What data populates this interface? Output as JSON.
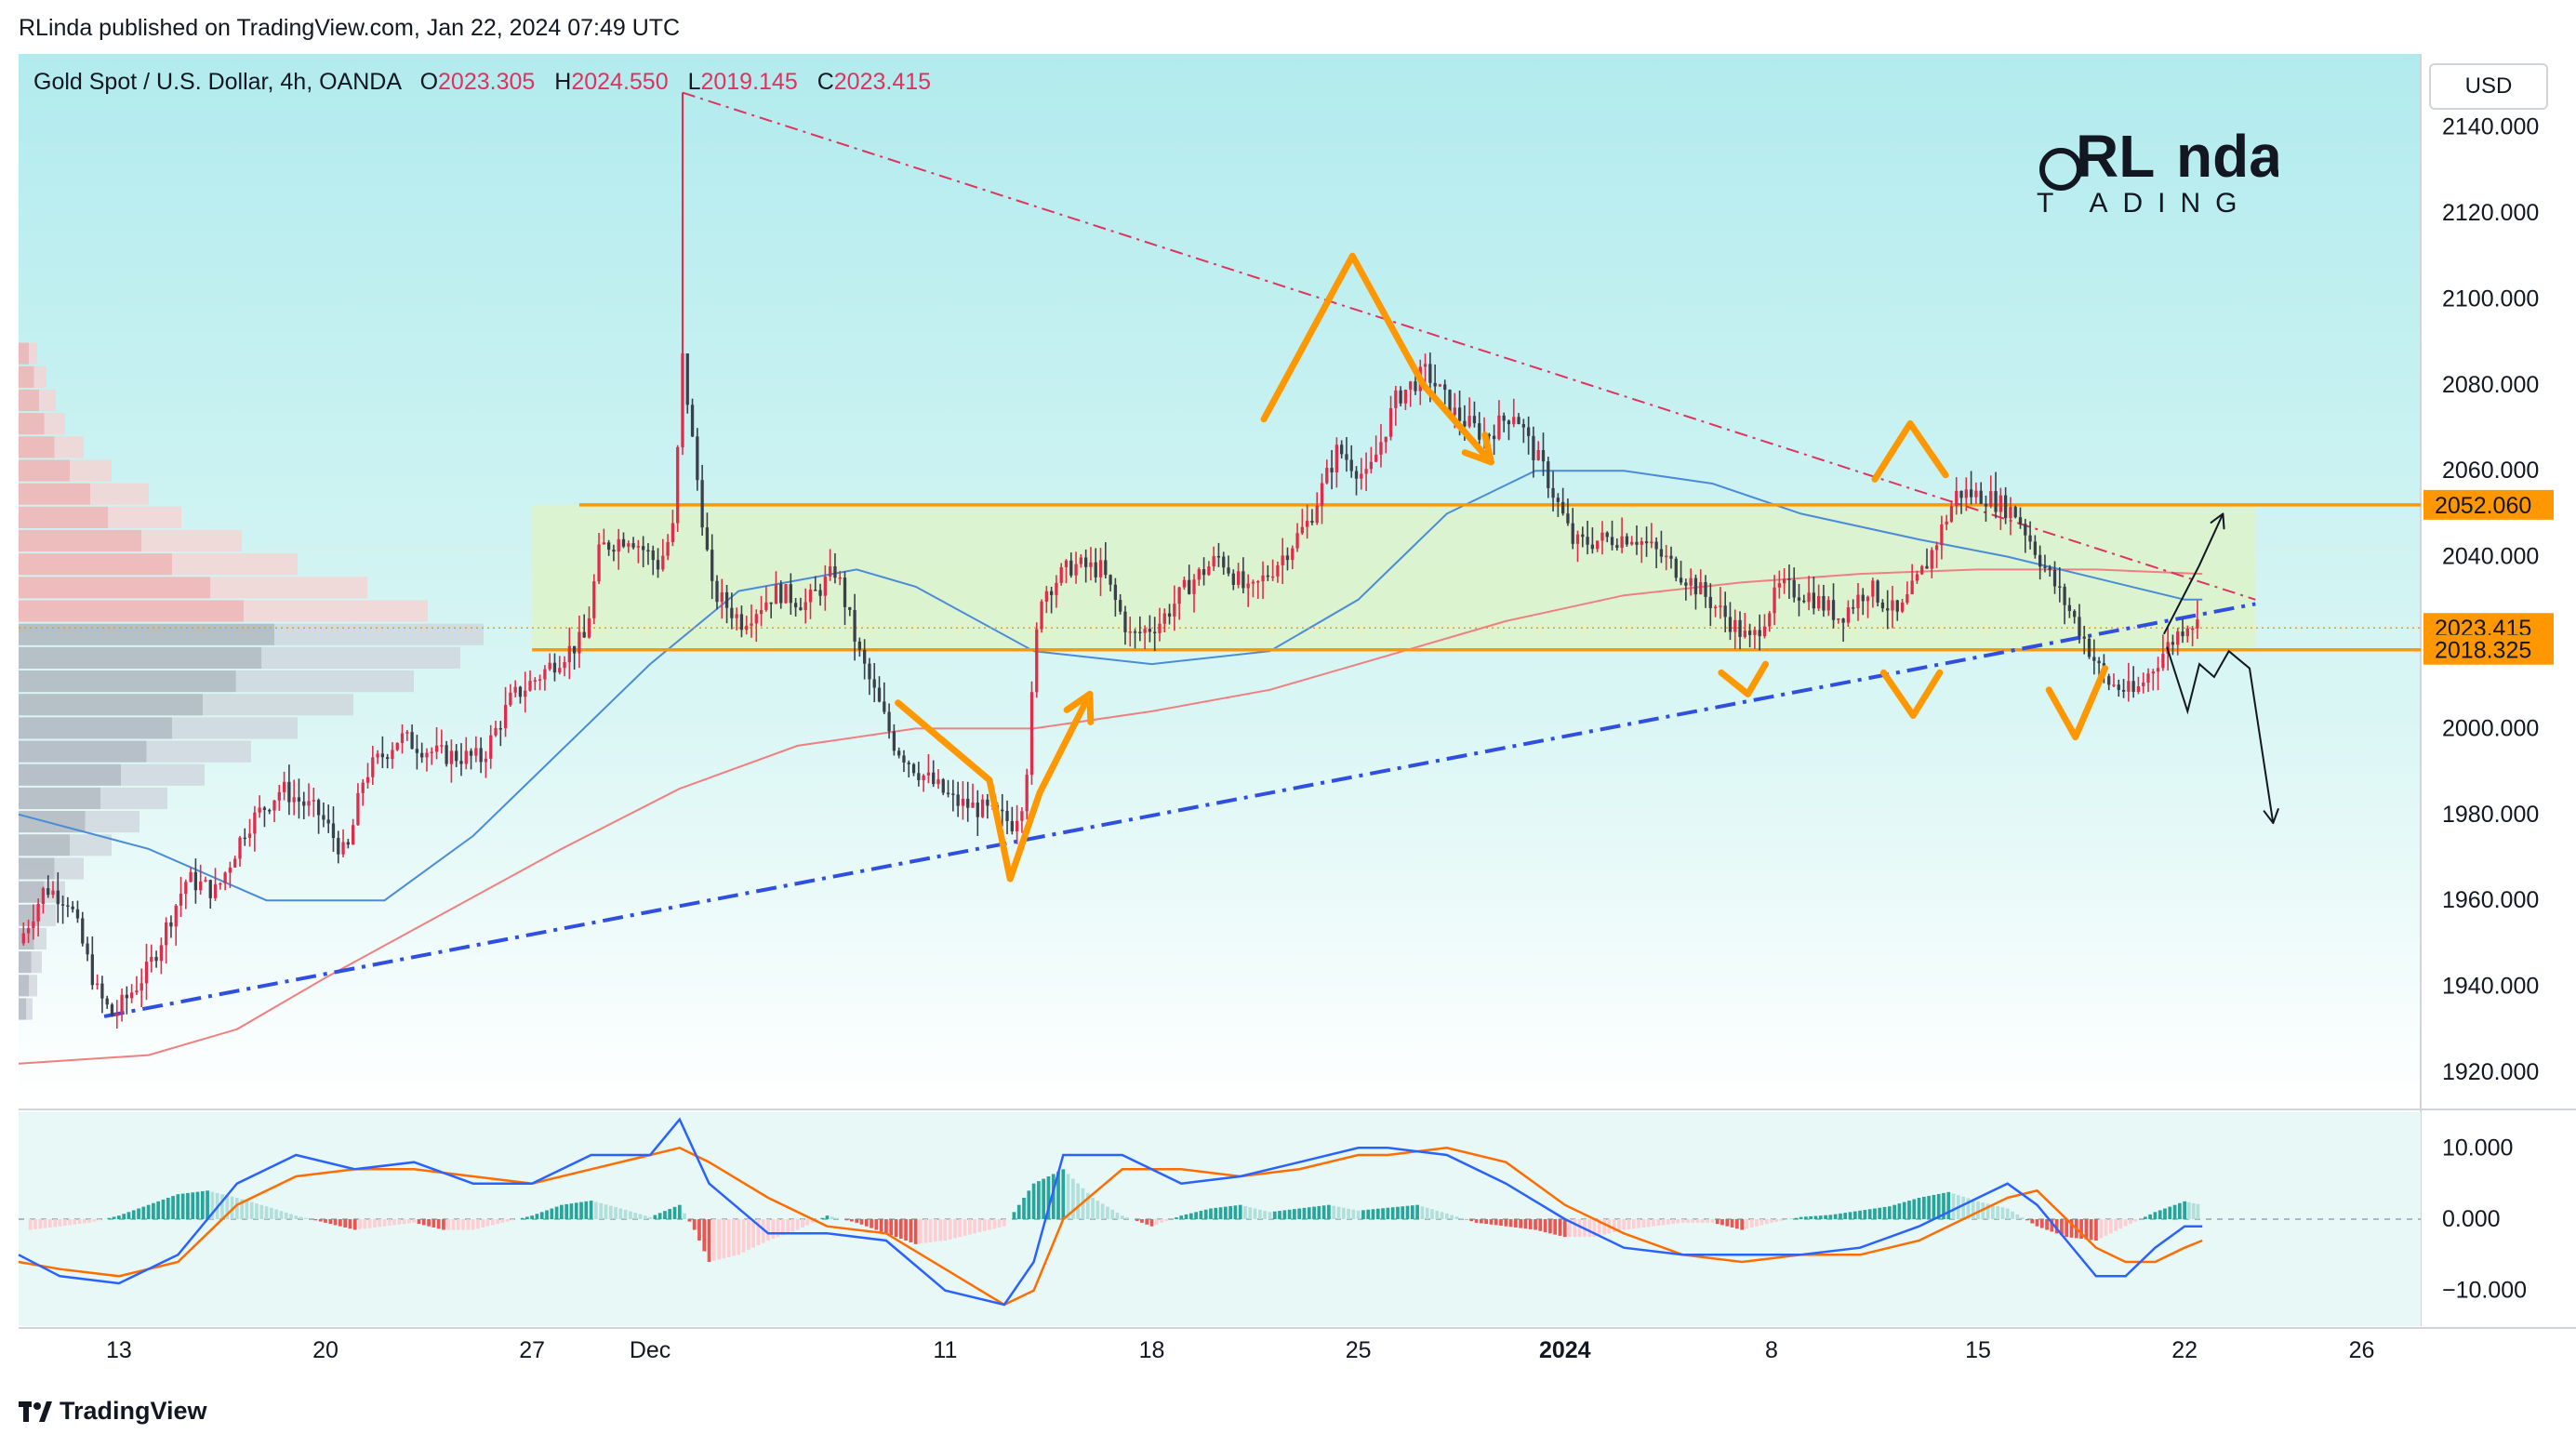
{
  "header": {
    "published": "RLinda published on TradingView.com, Jan 22, 2024 07:49 UTC"
  },
  "legend": {
    "symbol": "Gold Spot / U.S. Dollar, 4h, OANDA",
    "open_label": "O",
    "open": "2023.305",
    "high_label": "H",
    "high": "2024.550",
    "low_label": "L",
    "low": "2019.145",
    "close_label": "C",
    "close": "2023.415"
  },
  "currency_button": "USD",
  "brand": {
    "line1_a": "RL",
    "line1_b": "nda",
    "line2": "T  ADING"
  },
  "footer": {
    "logo_text": "TradingView"
  },
  "chart_data": {
    "type": "candlestick",
    "x_ticks": [
      {
        "label": "13",
        "day": 13
      },
      {
        "label": "20",
        "day": 20
      },
      {
        "label": "27",
        "day": 27
      },
      {
        "label": "Dec",
        "day": 31
      },
      {
        "label": "11",
        "day": 41
      },
      {
        "label": "18",
        "day": 48
      },
      {
        "label": "25",
        "day": 55
      },
      {
        "label": "2024",
        "day": 62
      },
      {
        "label": "8",
        "day": 69
      },
      {
        "label": "15",
        "day": 76
      },
      {
        "label": "22",
        "day": 83
      },
      {
        "label": "26",
        "day": 89
      }
    ],
    "xlim_days": [
      9.6,
      91.0
    ],
    "y_ticks": [
      "1920.000",
      "1940.000",
      "1960.000",
      "1980.000",
      "2000.000",
      "2020.000",
      "2040.000",
      "2060.000",
      "2080.000",
      "2100.000",
      "2120.000",
      "2140.000"
    ],
    "ylim": [
      1912,
      2157
    ],
    "price_labels": [
      {
        "value": 2052.06,
        "text": "2052.060",
        "color": "#ff9800"
      },
      {
        "value": 2023.415,
        "text": "2023.415",
        "color": "#ff9800"
      },
      {
        "value": 2018.325,
        "text": "2018.325",
        "color": "#ff9800"
      }
    ],
    "resistance_level": 2052.06,
    "support_level": 2018.325,
    "last_price": 2023.415,
    "range_zone": {
      "from_day": 27.0,
      "to_day": 85.4,
      "low": 2018.325,
      "high": 2052.06
    },
    "descending_trendline": {
      "start": {
        "day": 32.1,
        "price": 2148
      },
      "end": {
        "day": 85.4,
        "price": 2030
      }
    },
    "ascending_trendline": {
      "start": {
        "day": 12.5,
        "price": 1933
      },
      "end": {
        "day": 85.4,
        "price": 2029
      }
    },
    "price_path": [
      [
        9.6,
        1950
      ],
      [
        10.5,
        1963
      ],
      [
        11.3,
        1960
      ],
      [
        12.3,
        1938
      ],
      [
        12.8,
        1933
      ],
      [
        14,
        1944
      ],
      [
        15.3,
        1965
      ],
      [
        16.3,
        1962
      ],
      [
        17.3,
        1977
      ],
      [
        18.5,
        1986
      ],
      [
        19.8,
        1980
      ],
      [
        20.7,
        1970
      ],
      [
        21.3,
        1989
      ],
      [
        22.5,
        1998
      ],
      [
        23.8,
        1994
      ],
      [
        25.3,
        1993
      ],
      [
        26.3,
        2007
      ],
      [
        27.2,
        2012
      ],
      [
        28,
        2017
      ],
      [
        28.8,
        2021
      ],
      [
        29.3,
        2042
      ],
      [
        30.3,
        2045
      ],
      [
        31.3,
        2038
      ],
      [
        31.8,
        2047
      ],
      [
        32.1,
        2086
      ],
      [
        32.5,
        2063
      ],
      [
        33.1,
        2032
      ],
      [
        34.1,
        2025
      ],
      [
        35.3,
        2032
      ],
      [
        36.3,
        2029
      ],
      [
        37.3,
        2037
      ],
      [
        38.1,
        2017
      ],
      [
        39.3,
        1996
      ],
      [
        40.1,
        1990
      ],
      [
        41.3,
        1983
      ],
      [
        42.3,
        1981
      ],
      [
        43.3,
        1978
      ],
      [
        43.7,
        1985
      ],
      [
        44.2,
        2031
      ],
      [
        45.3,
        2038
      ],
      [
        46.3,
        2037
      ],
      [
        47.3,
        2021
      ],
      [
        48.3,
        2025
      ],
      [
        49.3,
        2034
      ],
      [
        50.3,
        2040
      ],
      [
        51.3,
        2031
      ],
      [
        52.3,
        2039
      ],
      [
        53.3,
        2048
      ],
      [
        54.3,
        2065
      ],
      [
        55.3,
        2058
      ],
      [
        56.3,
        2077
      ],
      [
        57.3,
        2083
      ],
      [
        58.3,
        2073
      ],
      [
        59.3,
        2068
      ],
      [
        60.3,
        2074
      ],
      [
        60.8,
        2066
      ],
      [
        61.3,
        2060
      ],
      [
        62.3,
        2043
      ],
      [
        63.3,
        2044
      ],
      [
        64.3,
        2045
      ],
      [
        65.3,
        2040
      ],
      [
        66.3,
        2034
      ],
      [
        67.3,
        2027
      ],
      [
        68.3,
        2020
      ],
      [
        69.3,
        2033
      ],
      [
        70.3,
        2031
      ],
      [
        71.3,
        2026
      ],
      [
        72.3,
        2033
      ],
      [
        73.3,
        2026
      ],
      [
        74.3,
        2039
      ],
      [
        75.3,
        2055
      ],
      [
        76.3,
        2054
      ],
      [
        77.3,
        2050
      ],
      [
        78.3,
        2037
      ],
      [
        79.3,
        2025
      ],
      [
        80.3,
        2011
      ],
      [
        81.3,
        2008
      ],
      [
        82.3,
        2018
      ],
      [
        83.1,
        2025
      ],
      [
        83.6,
        2024
      ]
    ],
    "sma_blue_path": [
      [
        9.6,
        1980
      ],
      [
        14,
        1972
      ],
      [
        18,
        1960
      ],
      [
        22,
        1960
      ],
      [
        25,
        1975
      ],
      [
        28,
        1995
      ],
      [
        31,
        2015
      ],
      [
        34,
        2032
      ],
      [
        38,
        2037
      ],
      [
        40,
        2033
      ],
      [
        44,
        2018
      ],
      [
        48,
        2015
      ],
      [
        52,
        2018
      ],
      [
        55,
        2030
      ],
      [
        58,
        2050
      ],
      [
        61,
        2060
      ],
      [
        64,
        2060
      ],
      [
        67,
        2057
      ],
      [
        70,
        2050
      ],
      [
        74,
        2044
      ],
      [
        77,
        2040
      ],
      [
        80,
        2035
      ],
      [
        83,
        2030
      ],
      [
        83.6,
        2030
      ]
    ],
    "sma_red_path": [
      [
        9.6,
        1922
      ],
      [
        14,
        1924
      ],
      [
        17,
        1930
      ],
      [
        20,
        1942
      ],
      [
        24,
        1957
      ],
      [
        28,
        1972
      ],
      [
        32,
        1986
      ],
      [
        36,
        1996
      ],
      [
        40,
        2000
      ],
      [
        44,
        2000
      ],
      [
        48,
        2004
      ],
      [
        52,
        2009
      ],
      [
        56,
        2017
      ],
      [
        60,
        2025
      ],
      [
        64,
        2031
      ],
      [
        68,
        2034
      ],
      [
        72,
        2036
      ],
      [
        76,
        2037
      ],
      [
        80,
        2037
      ],
      [
        83.6,
        2036
      ]
    ],
    "orange_drawing_paths": [
      [
        [
          39.4,
          2006
        ],
        [
          42.5,
          1988
        ],
        [
          43.2,
          1965
        ],
        [
          44.2,
          1985
        ],
        [
          45.9,
          2008
        ]
      ],
      [
        [
          51.8,
          2072
        ],
        [
          54.8,
          2110
        ],
        [
          57.2,
          2080
        ],
        [
          59.5,
          2062
        ]
      ],
      [
        [
          67.3,
          2013
        ],
        [
          68.2,
          2008
        ],
        [
          68.8,
          2015
        ]
      ],
      [
        [
          72.8,
          2013
        ],
        [
          73.8,
          2003
        ],
        [
          74.7,
          2013
        ]
      ],
      [
        [
          72.5,
          2058
        ],
        [
          73.7,
          2071
        ],
        [
          74.9,
          2059
        ]
      ],
      [
        [
          78.4,
          2009
        ],
        [
          79.3,
          1998
        ],
        [
          80.3,
          2014
        ]
      ]
    ],
    "projection_paths": [
      [
        [
          82.3,
          2022
        ],
        [
          83.5,
          2038
        ],
        [
          84.3,
          2050
        ]
      ],
      [
        [
          82.4,
          2019
        ],
        [
          83.1,
          2004
        ],
        [
          83.5,
          2015
        ],
        [
          84.0,
          2012
        ],
        [
          84.5,
          2018
        ],
        [
          85.2,
          2014
        ],
        [
          86.0,
          1978
        ]
      ]
    ],
    "volume_profile_bins": [
      4,
      6,
      8,
      10,
      14,
      20,
      28,
      35,
      48,
      60,
      75,
      88,
      100,
      95,
      85,
      72,
      60,
      50,
      40,
      32,
      26,
      20,
      14,
      10,
      8,
      6,
      5,
      4,
      3
    ],
    "macd": {
      "y_ticks": [
        "10.000",
        "0.000",
        "−10.000"
      ],
      "ylim": [
        -15,
        15
      ],
      "histogram": [
        [
          10,
          -1.5
        ],
        [
          11,
          -1
        ],
        [
          12,
          -0.5
        ],
        [
          13,
          0.5
        ],
        [
          14,
          2
        ],
        [
          15,
          3.5
        ],
        [
          16,
          4
        ],
        [
          17,
          3
        ],
        [
          18,
          1.8
        ],
        [
          19,
          0.5
        ],
        [
          20,
          -0.5
        ],
        [
          21,
          -1.5
        ],
        [
          22,
          -1
        ],
        [
          23,
          -0.5
        ],
        [
          24,
          -1.5
        ],
        [
          25,
          -1.5
        ],
        [
          26,
          -0.5
        ],
        [
          27,
          0.5
        ],
        [
          28,
          2
        ],
        [
          29,
          2.6
        ],
        [
          30,
          1.5
        ],
        [
          31,
          0.3
        ],
        [
          32,
          2
        ],
        [
          32.5,
          -1.5
        ],
        [
          33,
          -6
        ],
        [
          34,
          -5
        ],
        [
          35,
          -3
        ],
        [
          36,
          -1.5
        ],
        [
          37,
          0.5
        ],
        [
          38,
          -0.5
        ],
        [
          39,
          -2
        ],
        [
          40,
          -3.5
        ],
        [
          41,
          -3
        ],
        [
          42,
          -2
        ],
        [
          43,
          -1
        ],
        [
          44,
          5
        ],
        [
          45,
          7
        ],
        [
          46,
          3
        ],
        [
          47,
          0.5
        ],
        [
          48,
          -1
        ],
        [
          49,
          0.5
        ],
        [
          50,
          1.5
        ],
        [
          51,
          2
        ],
        [
          52,
          1
        ],
        [
          53,
          1.5
        ],
        [
          54,
          2
        ],
        [
          55,
          1.2
        ],
        [
          56,
          1.6
        ],
        [
          57,
          2
        ],
        [
          58,
          0.8
        ],
        [
          59,
          -0.5
        ],
        [
          60,
          -1
        ],
        [
          61,
          -1.5
        ],
        [
          62,
          -2.5
        ],
        [
          63,
          -2.5
        ],
        [
          64,
          -1.5
        ],
        [
          65,
          -1
        ],
        [
          66,
          -0.5
        ],
        [
          67,
          -0.5
        ],
        [
          68,
          -1.5
        ],
        [
          69,
          -0.5
        ],
        [
          70,
          0.3
        ],
        [
          71,
          0.6
        ],
        [
          72,
          1.2
        ],
        [
          73,
          1.8
        ],
        [
          74,
          3
        ],
        [
          75,
          3.8
        ],
        [
          76,
          2.5
        ],
        [
          77,
          1.5
        ],
        [
          78,
          -1
        ],
        [
          79,
          -2.5
        ],
        [
          80,
          -3
        ],
        [
          81,
          -1
        ],
        [
          82,
          1
        ],
        [
          83,
          2.5
        ],
        [
          83.6,
          2
        ]
      ],
      "macd_line": [
        [
          9.6,
          -5
        ],
        [
          11,
          -8
        ],
        [
          13,
          -9
        ],
        [
          15,
          -5
        ],
        [
          17,
          5
        ],
        [
          19,
          9
        ],
        [
          21,
          7
        ],
        [
          23,
          8
        ],
        [
          25,
          5
        ],
        [
          27,
          5
        ],
        [
          29,
          9
        ],
        [
          31,
          9
        ],
        [
          32,
          14
        ],
        [
          33,
          5
        ],
        [
          35,
          -2
        ],
        [
          37,
          -2
        ],
        [
          39,
          -3
        ],
        [
          41,
          -10
        ],
        [
          43,
          -12
        ],
        [
          44,
          -6
        ],
        [
          45,
          9
        ],
        [
          47,
          9
        ],
        [
          49,
          5
        ],
        [
          51,
          6
        ],
        [
          53,
          8
        ],
        [
          55,
          10
        ],
        [
          56,
          10
        ],
        [
          58,
          9
        ],
        [
          60,
          5
        ],
        [
          62,
          0
        ],
        [
          64,
          -4
        ],
        [
          66,
          -5
        ],
        [
          68,
          -5
        ],
        [
          70,
          -5
        ],
        [
          72,
          -4
        ],
        [
          74,
          -1
        ],
        [
          76,
          3
        ],
        [
          77,
          5
        ],
        [
          78,
          2
        ],
        [
          79,
          -3
        ],
        [
          80,
          -8
        ],
        [
          81,
          -8
        ],
        [
          82,
          -4
        ],
        [
          83,
          -1
        ],
        [
          83.6,
          -1
        ]
      ],
      "signal_line": [
        [
          9.6,
          -6
        ],
        [
          11,
          -7
        ],
        [
          13,
          -8
        ],
        [
          15,
          -6
        ],
        [
          17,
          2
        ],
        [
          19,
          6
        ],
        [
          21,
          7
        ],
        [
          23,
          7
        ],
        [
          25,
          6
        ],
        [
          27,
          5
        ],
        [
          29,
          7
        ],
        [
          31,
          9
        ],
        [
          32,
          10
        ],
        [
          33,
          8
        ],
        [
          35,
          3
        ],
        [
          37,
          -1
        ],
        [
          39,
          -2
        ],
        [
          41,
          -7
        ],
        [
          43,
          -12
        ],
        [
          44,
          -10
        ],
        [
          45,
          0
        ],
        [
          47,
          7
        ],
        [
          49,
          7
        ],
        [
          51,
          6
        ],
        [
          53,
          7
        ],
        [
          55,
          9
        ],
        [
          56,
          9
        ],
        [
          58,
          10
        ],
        [
          60,
          8
        ],
        [
          62,
          2
        ],
        [
          64,
          -2
        ],
        [
          66,
          -5
        ],
        [
          68,
          -6
        ],
        [
          70,
          -5
        ],
        [
          72,
          -5
        ],
        [
          74,
          -3
        ],
        [
          76,
          1
        ],
        [
          77,
          3
        ],
        [
          78,
          4
        ],
        [
          79,
          0
        ],
        [
          80,
          -4
        ],
        [
          81,
          -6
        ],
        [
          82,
          -6
        ],
        [
          83,
          -4
        ],
        [
          83.6,
          -3
        ]
      ]
    }
  }
}
